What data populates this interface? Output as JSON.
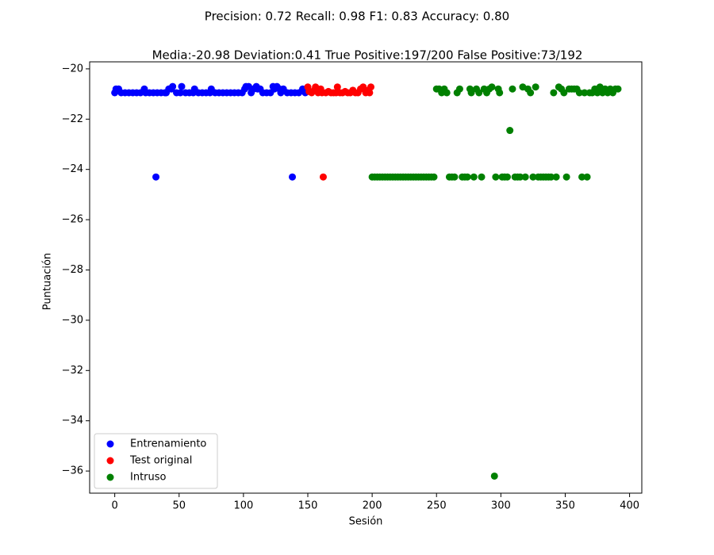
{
  "chart_data": {
    "type": "scatter",
    "suptitle": "Precision: 0.72 Recall: 0.98 F1: 0.83 Accuracy: 0.80",
    "title": "Media:-20.98 Deviation:0.41 True Positive:197/200 False Positive:73/192",
    "x_label": "Sesión",
    "y_label": "Puntuación",
    "xlim": [
      -19.5,
      409.5
    ],
    "ylim": [
      -36.88,
      -19.72
    ],
    "xticks": [
      0,
      50,
      100,
      150,
      200,
      250,
      300,
      350,
      400
    ],
    "yticks": [
      {
        "value": -36,
        "label": "−36"
      },
      {
        "value": -34,
        "label": "−34"
      },
      {
        "value": -32,
        "label": "−32"
      },
      {
        "value": -30,
        "label": "−30"
      },
      {
        "value": -28,
        "label": "−28"
      },
      {
        "value": -26,
        "label": "−26"
      },
      {
        "value": -24,
        "label": "−24"
      },
      {
        "value": -22,
        "label": "−22"
      },
      {
        "value": -20,
        "label": "−20"
      }
    ],
    "legend": "lower left",
    "series": [
      {
        "name": "Entrenamiento",
        "color": "#0000ff",
        "x": [
          0,
          1,
          3,
          5,
          8,
          11,
          14,
          17,
          20,
          23,
          24,
          27,
          30,
          32,
          33,
          36,
          39,
          40,
          42,
          44,
          45,
          48,
          51,
          52,
          55,
          58,
          61,
          62,
          65,
          68,
          71,
          74,
          75,
          78,
          81,
          84,
          87,
          90,
          93,
          96,
          99,
          101,
          102,
          104,
          106,
          108,
          110,
          111,
          113,
          115,
          118,
          121,
          123,
          124,
          126,
          128,
          129,
          131,
          134,
          137,
          138,
          140,
          143,
          146,
          148
        ],
        "values": [
          -20.95,
          -20.8,
          -20.8,
          -20.95,
          -20.95,
          -20.95,
          -20.95,
          -20.95,
          -20.95,
          -20.8,
          -20.95,
          -20.95,
          -20.95,
          -24.3,
          -20.95,
          -20.95,
          -20.95,
          -20.95,
          -20.8,
          -20.8,
          -20.7,
          -20.95,
          -20.95,
          -20.7,
          -20.95,
          -20.95,
          -20.95,
          -20.8,
          -20.95,
          -20.95,
          -20.95,
          -20.95,
          -20.8,
          -20.95,
          -20.95,
          -20.95,
          -20.95,
          -20.95,
          -20.95,
          -20.95,
          -20.95,
          -20.8,
          -20.7,
          -20.7,
          -20.95,
          -20.8,
          -20.7,
          -20.8,
          -20.8,
          -20.95,
          -20.95,
          -20.95,
          -20.7,
          -20.8,
          -20.7,
          -20.8,
          -20.95,
          -20.8,
          -20.95,
          -20.95,
          -24.3,
          -20.95,
          -20.95,
          -20.8,
          -20.95
        ]
      },
      {
        "name": "Test original",
        "color": "#ff0000",
        "x": [
          150,
          151,
          153,
          155,
          156,
          158,
          160,
          161,
          162,
          164,
          166,
          168,
          170,
          172,
          173,
          175,
          177,
          179,
          181,
          183,
          185,
          187,
          189,
          191,
          193,
          195,
          197,
          198,
          199
        ],
        "values": [
          -20.72,
          -20.9,
          -20.95,
          -20.85,
          -20.72,
          -20.95,
          -20.8,
          -20.95,
          -24.3,
          -20.95,
          -20.9,
          -20.95,
          -20.95,
          -20.95,
          -20.72,
          -20.95,
          -20.95,
          -20.9,
          -20.95,
          -20.95,
          -20.85,
          -20.95,
          -20.95,
          -20.8,
          -20.72,
          -20.95,
          -20.85,
          -20.95,
          -20.72
        ]
      },
      {
        "name": "Intruso",
        "color": "#008000",
        "x": [
          200,
          202,
          204,
          206,
          208,
          210,
          212,
          214,
          216,
          218,
          220,
          222,
          224,
          226,
          228,
          230,
          232,
          234,
          236,
          238,
          240,
          242,
          244,
          246,
          248,
          250,
          252,
          254,
          256,
          258,
          260,
          262,
          264,
          266,
          268,
          270,
          272,
          274,
          276,
          277,
          279,
          281,
          283,
          285,
          287,
          289,
          291,
          293,
          295,
          296,
          298,
          299,
          301,
          303,
          305,
          307,
          309,
          311,
          313,
          315,
          317,
          319,
          321,
          323,
          325,
          327,
          329,
          331,
          333,
          335,
          337,
          339,
          341,
          343,
          345,
          347,
          349,
          351,
          353,
          355,
          357,
          359,
          361,
          363,
          365,
          367,
          369,
          371,
          373,
          375,
          377,
          379,
          381,
          383,
          385,
          387,
          389,
          391
        ],
        "values": [
          -24.3,
          -24.3,
          -24.3,
          -24.3,
          -24.3,
          -24.3,
          -24.3,
          -24.3,
          -24.3,
          -24.3,
          -24.3,
          -24.3,
          -24.3,
          -24.3,
          -24.3,
          -24.3,
          -24.3,
          -24.3,
          -24.3,
          -24.3,
          -24.3,
          -24.3,
          -24.3,
          -24.3,
          -24.3,
          -20.8,
          -20.8,
          -20.95,
          -20.8,
          -20.95,
          -24.3,
          -24.3,
          -24.3,
          -20.95,
          -20.8,
          -24.3,
          -24.3,
          -24.3,
          -20.8,
          -20.95,
          -24.3,
          -20.8,
          -20.95,
          -24.3,
          -20.8,
          -20.95,
          -20.8,
          -20.72,
          -36.2,
          -24.3,
          -20.8,
          -20.95,
          -24.3,
          -24.3,
          -24.3,
          -22.45,
          -20.8,
          -24.3,
          -24.3,
          -24.3,
          -20.72,
          -24.3,
          -20.8,
          -20.95,
          -24.3,
          -20.72,
          -24.3,
          -24.3,
          -24.3,
          -24.3,
          -24.3,
          -24.3,
          -20.95,
          -24.3,
          -20.72,
          -20.8,
          -20.95,
          -24.3,
          -20.8,
          -20.8,
          -20.8,
          -20.8,
          -20.95,
          -24.3,
          -20.95,
          -24.3,
          -20.95,
          -20.95,
          -20.8,
          -20.95,
          -20.72,
          -20.95,
          -20.8,
          -20.95,
          -20.8,
          -20.95,
          -20.8,
          -20.8
        ]
      }
    ]
  }
}
